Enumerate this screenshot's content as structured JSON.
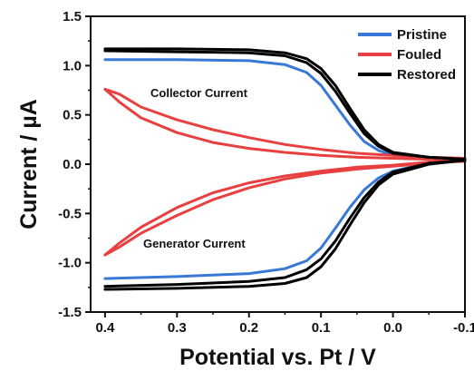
{
  "chart_data": {
    "type": "line",
    "xlabel": "Potential vs. Pt / V",
    "ylabel": "Current / µA",
    "xlim": [
      0.42,
      -0.1
    ],
    "ylim": [
      -1.5,
      1.5
    ],
    "xaxis_reversed": true,
    "x_ticks": [
      0.4,
      0.3,
      0.2,
      0.1,
      0.0,
      -0.1
    ],
    "x_tick_labels": [
      "0.4",
      "0.3",
      "0.2",
      "0.1",
      "0.0",
      "-0.1"
    ],
    "y_ticks": [
      1.5,
      1.0,
      0.5,
      0.0,
      -0.5,
      -1.0,
      -1.5
    ],
    "y_tick_labels": [
      "1.5",
      "1.0",
      "0.5",
      "0.0",
      "-0.5",
      "-1.0",
      "-1.5"
    ],
    "grid": false,
    "legend_position": "top-right",
    "annotations": [
      {
        "text": "Collector Current",
        "x": 0.32,
        "y": 0.5
      },
      {
        "text": "Generator Current",
        "x": 0.32,
        "y": -0.55
      }
    ],
    "series": [
      {
        "name": "Pristine",
        "color": "#3a78d8",
        "branches": [
          {
            "label": "collector",
            "points": [
              [
                0.4,
                1.06
              ],
              [
                0.3,
                1.06
              ],
              [
                0.2,
                1.05
              ],
              [
                0.15,
                1.01
              ],
              [
                0.12,
                0.93
              ],
              [
                0.1,
                0.8
              ],
              [
                0.08,
                0.6
              ],
              [
                0.06,
                0.4
              ],
              [
                0.04,
                0.23
              ],
              [
                0.02,
                0.14
              ],
              [
                0.0,
                0.09
              ],
              [
                -0.05,
                0.06
              ],
              [
                -0.1,
                0.05
              ]
            ]
          },
          {
            "label": "generator",
            "points": [
              [
                0.4,
                -1.16
              ],
              [
                0.3,
                -1.14
              ],
              [
                0.2,
                -1.11
              ],
              [
                0.15,
                -1.06
              ],
              [
                0.12,
                -0.98
              ],
              [
                0.1,
                -0.85
              ],
              [
                0.08,
                -0.65
              ],
              [
                0.06,
                -0.44
              ],
              [
                0.04,
                -0.26
              ],
              [
                0.02,
                -0.14
              ],
              [
                0.0,
                -0.07
              ],
              [
                -0.05,
                0.01
              ],
              [
                -0.1,
                0.04
              ]
            ]
          }
        ]
      },
      {
        "name": "Fouled",
        "color": "#e84040",
        "branches": [
          {
            "label": "collector-upper",
            "points": [
              [
                0.4,
                0.76
              ],
              [
                0.38,
                0.71
              ],
              [
                0.35,
                0.58
              ],
              [
                0.3,
                0.45
              ],
              [
                0.25,
                0.35
              ],
              [
                0.2,
                0.27
              ],
              [
                0.15,
                0.2
              ],
              [
                0.1,
                0.15
              ],
              [
                0.05,
                0.11
              ],
              [
                0.0,
                0.09
              ],
              [
                -0.05,
                0.07
              ],
              [
                -0.1,
                0.06
              ]
            ]
          },
          {
            "label": "collector-lower",
            "points": [
              [
                0.4,
                0.76
              ],
              [
                0.38,
                0.63
              ],
              [
                0.35,
                0.47
              ],
              [
                0.3,
                0.32
              ],
              [
                0.25,
                0.22
              ],
              [
                0.2,
                0.16
              ],
              [
                0.15,
                0.12
              ],
              [
                0.1,
                0.09
              ],
              [
                0.05,
                0.07
              ],
              [
                0.0,
                0.06
              ],
              [
                -0.05,
                0.05
              ],
              [
                -0.1,
                0.05
              ]
            ]
          },
          {
            "label": "generator-lower",
            "points": [
              [
                0.4,
                -0.92
              ],
              [
                0.38,
                -0.84
              ],
              [
                0.35,
                -0.7
              ],
              [
                0.3,
                -0.52
              ],
              [
                0.25,
                -0.36
              ],
              [
                0.2,
                -0.24
              ],
              [
                0.15,
                -0.15
              ],
              [
                0.1,
                -0.09
              ],
              [
                0.05,
                -0.05
              ],
              [
                0.0,
                -0.02
              ],
              [
                -0.05,
                0.01
              ],
              [
                -0.1,
                0.03
              ]
            ]
          },
          {
            "label": "generator-upper",
            "points": [
              [
                0.4,
                -0.92
              ],
              [
                0.38,
                -0.8
              ],
              [
                0.35,
                -0.64
              ],
              [
                0.3,
                -0.44
              ],
              [
                0.25,
                -0.29
              ],
              [
                0.2,
                -0.19
              ],
              [
                0.15,
                -0.12
              ],
              [
                0.1,
                -0.07
              ],
              [
                0.05,
                -0.03
              ],
              [
                0.0,
                -0.01
              ],
              [
                -0.05,
                0.02
              ],
              [
                -0.1,
                0.03
              ]
            ]
          }
        ]
      },
      {
        "name": "Restored",
        "color": "#000000",
        "branches": [
          {
            "label": "collector-1",
            "points": [
              [
                0.4,
                1.17
              ],
              [
                0.3,
                1.17
              ],
              [
                0.2,
                1.16
              ],
              [
                0.15,
                1.13
              ],
              [
                0.12,
                1.07
              ],
              [
                0.1,
                0.97
              ],
              [
                0.08,
                0.8
              ],
              [
                0.06,
                0.57
              ],
              [
                0.04,
                0.35
              ],
              [
                0.02,
                0.2
              ],
              [
                0.0,
                0.12
              ],
              [
                -0.05,
                0.07
              ],
              [
                -0.1,
                0.05
              ]
            ]
          },
          {
            "label": "collector-2",
            "points": [
              [
                0.4,
                1.15
              ],
              [
                0.3,
                1.14
              ],
              [
                0.2,
                1.13
              ],
              [
                0.15,
                1.1
              ],
              [
                0.12,
                1.03
              ],
              [
                0.1,
                0.92
              ],
              [
                0.08,
                0.74
              ],
              [
                0.06,
                0.52
              ],
              [
                0.04,
                0.31
              ],
              [
                0.02,
                0.18
              ],
              [
                0.0,
                0.11
              ],
              [
                -0.05,
                0.07
              ],
              [
                -0.1,
                0.05
              ]
            ]
          },
          {
            "label": "generator-1",
            "points": [
              [
                0.4,
                -1.24
              ],
              [
                0.3,
                -1.22
              ],
              [
                0.2,
                -1.19
              ],
              [
                0.15,
                -1.15
              ],
              [
                0.12,
                -1.07
              ],
              [
                0.1,
                -0.96
              ],
              [
                0.08,
                -0.78
              ],
              [
                0.06,
                -0.55
              ],
              [
                0.04,
                -0.34
              ],
              [
                0.02,
                -0.18
              ],
              [
                0.0,
                -0.08
              ],
              [
                -0.05,
                0.01
              ],
              [
                -0.1,
                0.04
              ]
            ]
          },
          {
            "label": "generator-2",
            "points": [
              [
                0.4,
                -1.27
              ],
              [
                0.3,
                -1.26
              ],
              [
                0.2,
                -1.24
              ],
              [
                0.15,
                -1.21
              ],
              [
                0.12,
                -1.15
              ],
              [
                0.1,
                -1.04
              ],
              [
                0.08,
                -0.86
              ],
              [
                0.06,
                -0.62
              ],
              [
                0.04,
                -0.39
              ],
              [
                0.02,
                -0.21
              ],
              [
                0.0,
                -0.1
              ],
              [
                -0.05,
                0.0
              ],
              [
                -0.1,
                0.04
              ]
            ]
          }
        ]
      }
    ]
  }
}
